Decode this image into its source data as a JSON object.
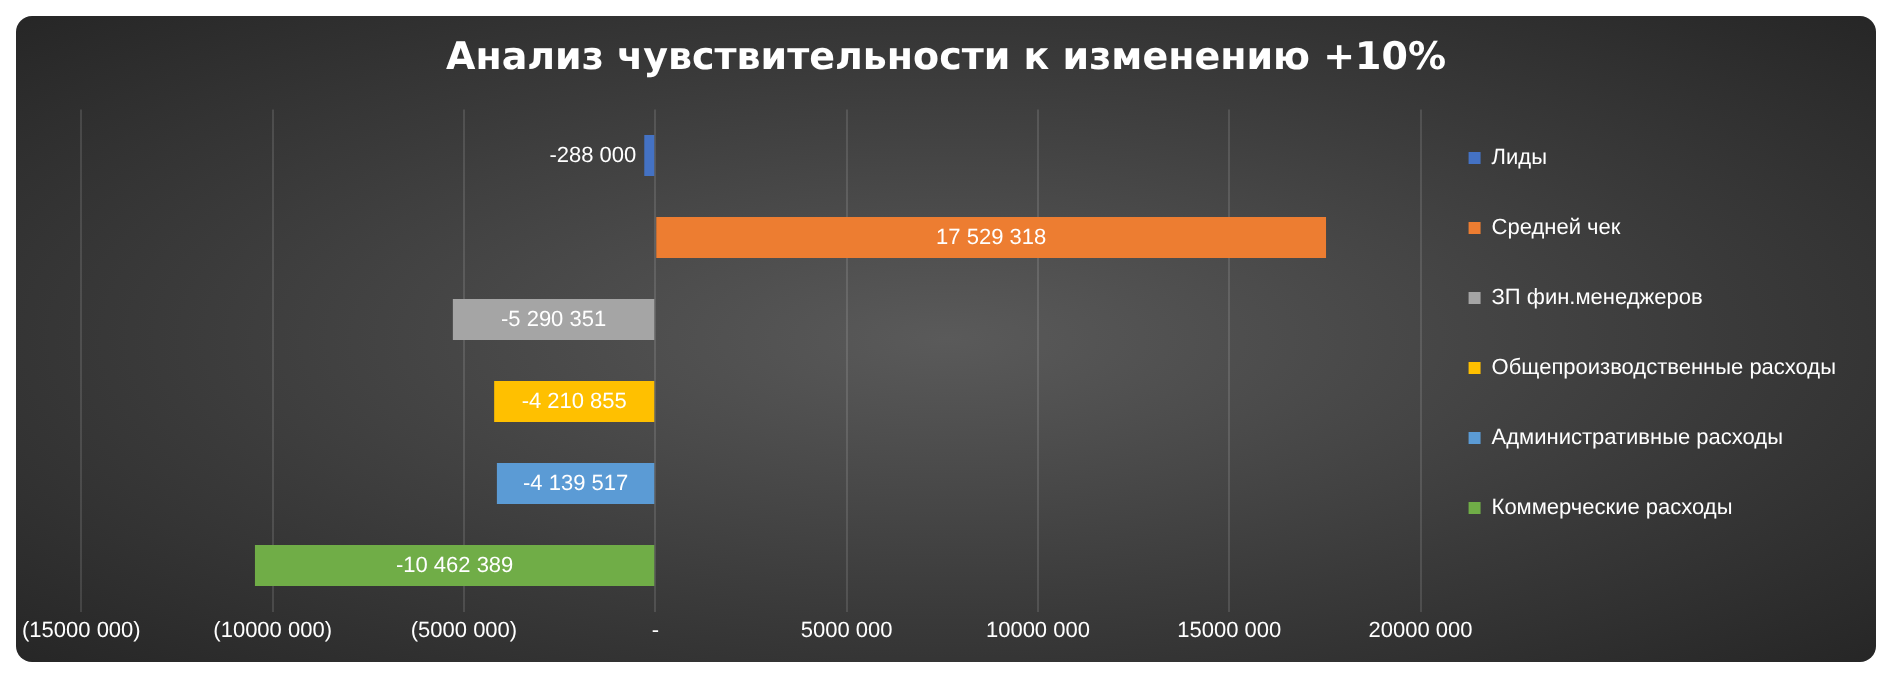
{
  "chart_data": {
    "type": "bar",
    "orientation": "horizontal",
    "title": "Анализ чувствительности к изменению +10%",
    "categories": [
      null
    ],
    "series": [
      {
        "name": "Лиды",
        "color": "#4472c4",
        "values": [
          -288000
        ],
        "value_labels": [
          "-288 000"
        ]
      },
      {
        "name": "Средней чек",
        "color": "#ed7d31",
        "values": [
          17529318
        ],
        "value_labels": [
          "17 529 318"
        ]
      },
      {
        "name": "ЗП фин.менеджеров",
        "color": "#a5a5a5",
        "values": [
          -5290351
        ],
        "value_labels": [
          "-5 290 351"
        ]
      },
      {
        "name": "Общепроизводственные расходы",
        "color": "#ffc000",
        "values": [
          -4210855
        ],
        "value_labels": [
          "-4 210 855"
        ]
      },
      {
        "name": "Административные расходы",
        "color": "#5b9bd5",
        "values": [
          -4139517
        ],
        "value_labels": [
          "-4 139 517"
        ]
      },
      {
        "name": "Коммерческие расходы",
        "color": "#70ad47",
        "values": [
          -10462389
        ],
        "value_labels": [
          "-10 462 389"
        ]
      }
    ],
    "xlim": [
      -15000000,
      20000000
    ],
    "xticks": [
      {
        "value": -15000000,
        "label": "(15000 000)"
      },
      {
        "value": -10000000,
        "label": "(10000 000)"
      },
      {
        "value": -5000000,
        "label": "(5000 000)"
      },
      {
        "value": 0,
        "label": "-"
      },
      {
        "value": 5000000,
        "label": "5000 000"
      },
      {
        "value": 10000000,
        "label": "10000 000"
      },
      {
        "value": 15000000,
        "label": "15000 000"
      },
      {
        "value": 20000000,
        "label": "20000 000"
      }
    ],
    "grid": "x",
    "legend": "right",
    "tick_labels": "x"
  }
}
